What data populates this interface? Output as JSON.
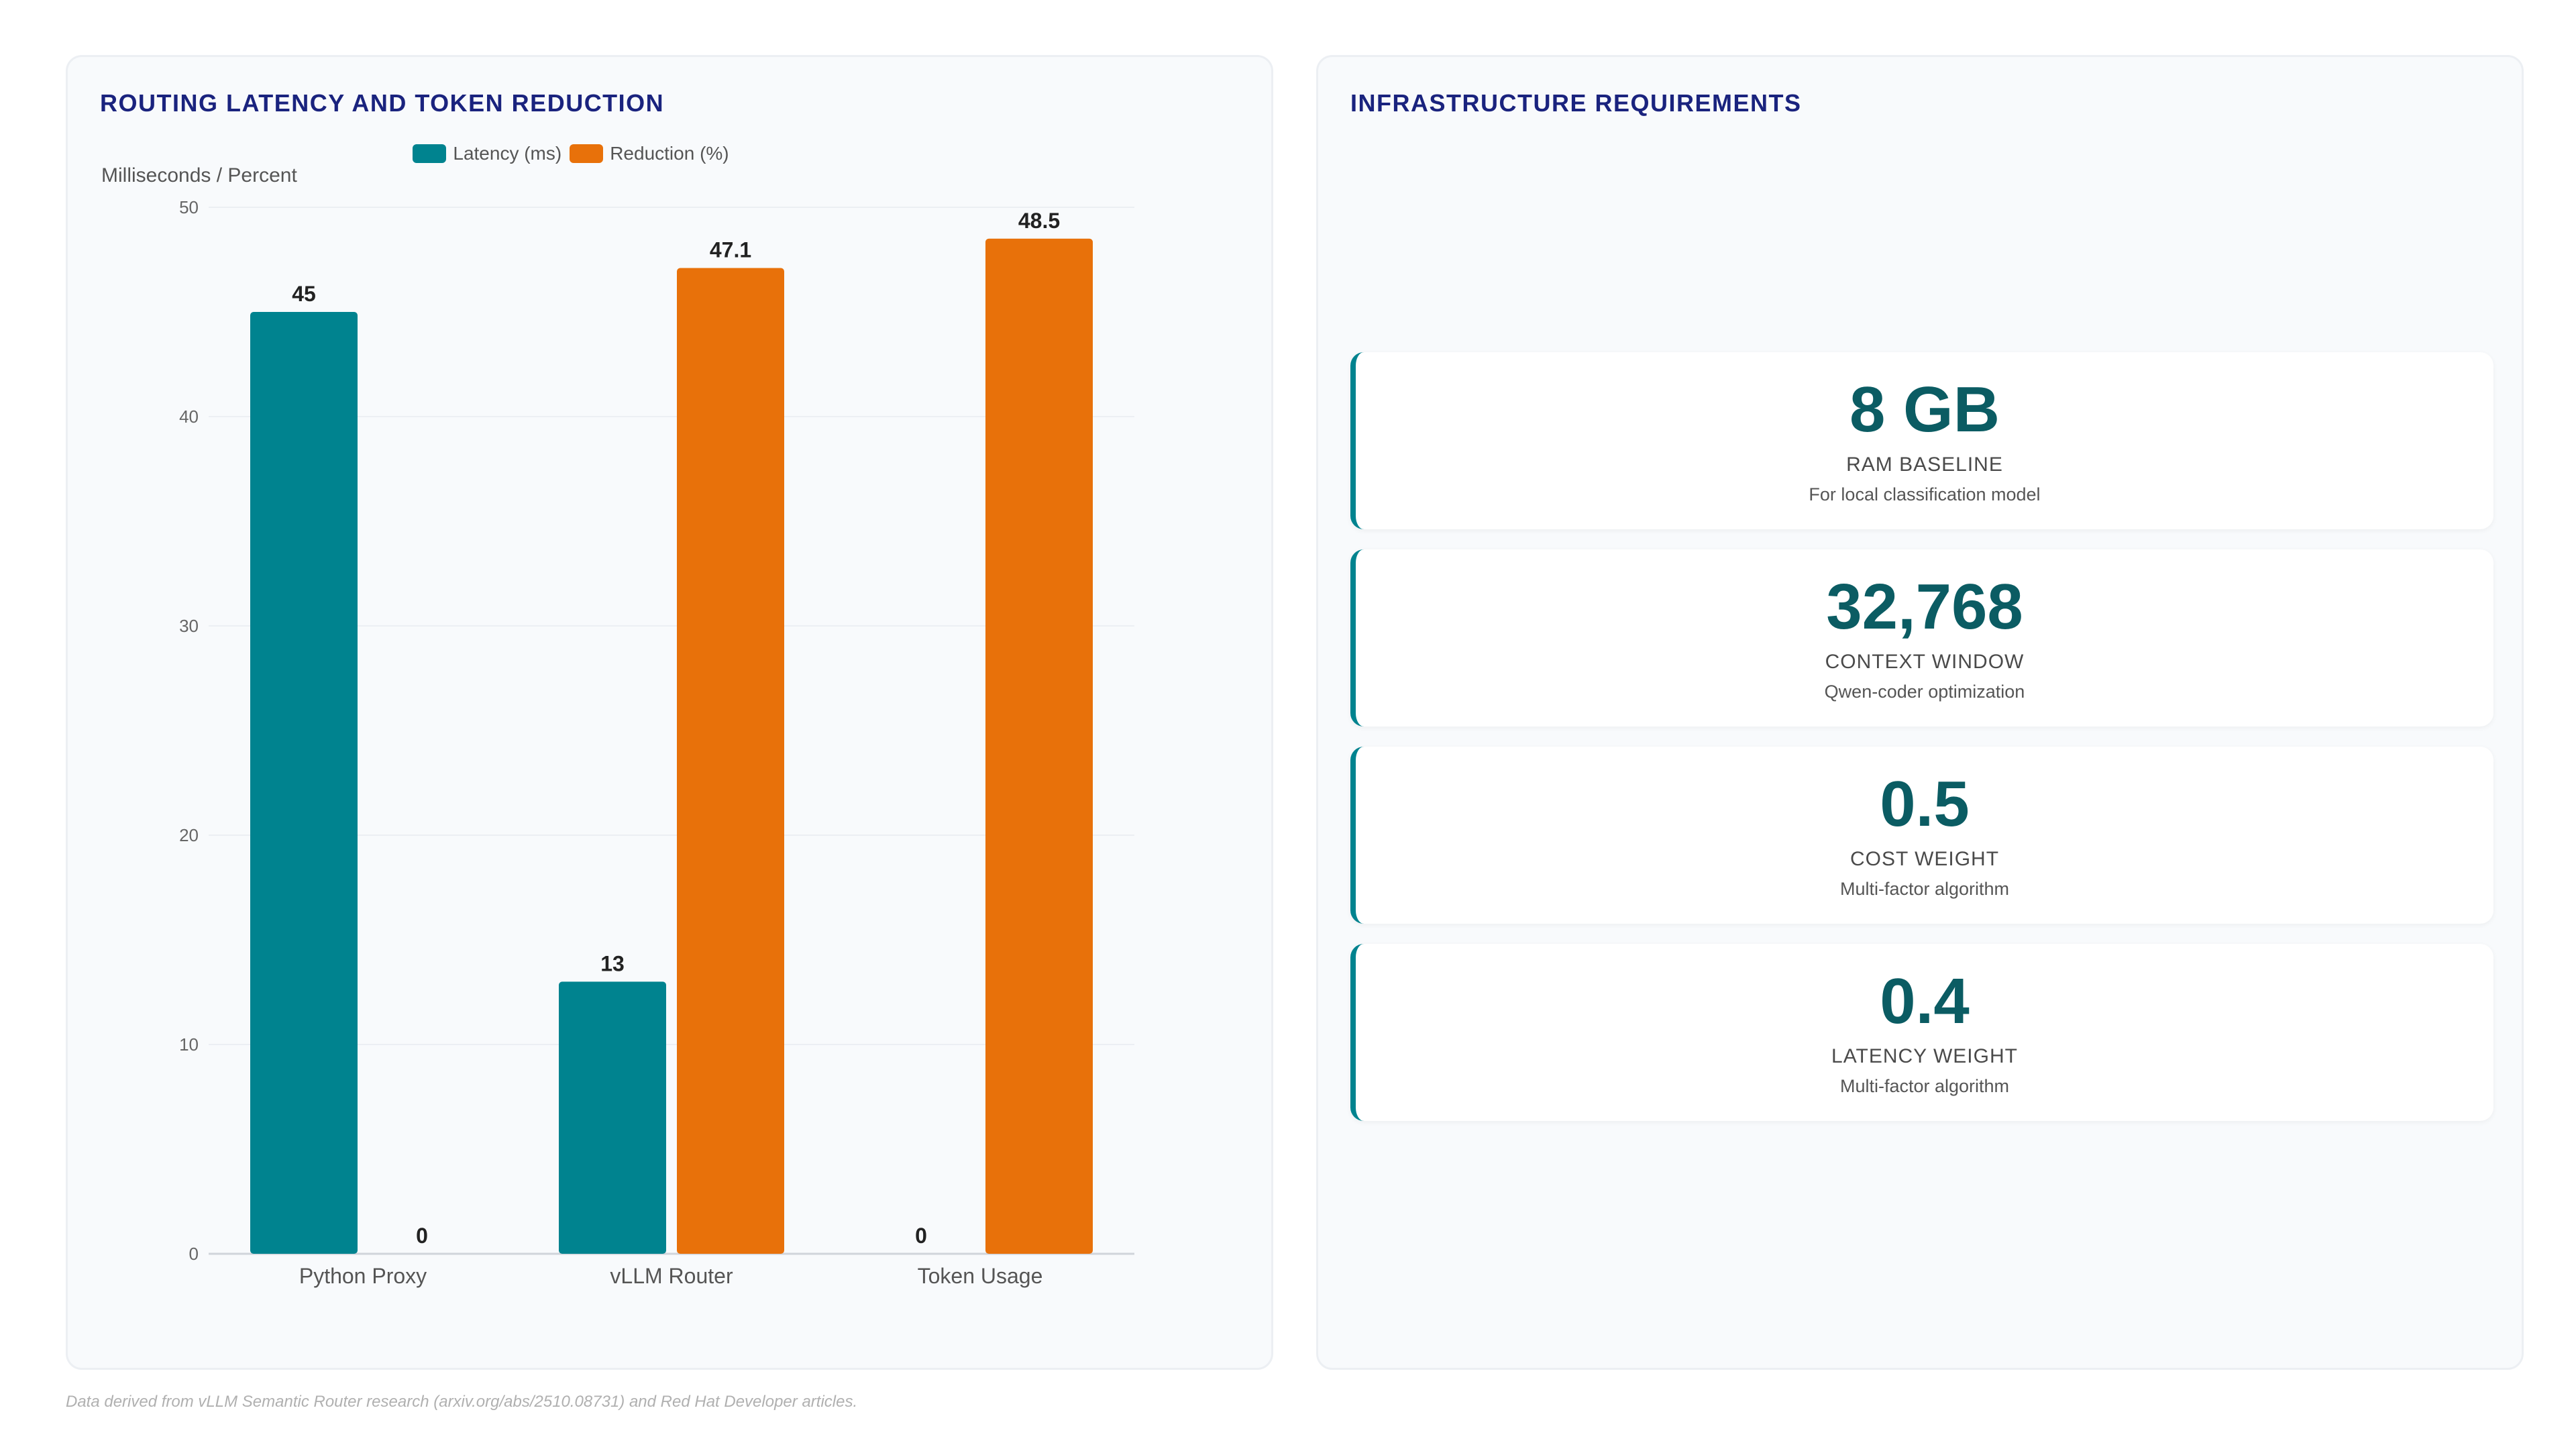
{
  "chart_panel": {
    "title": "ROUTING LATENCY AND TOKEN REDUCTION"
  },
  "chart_data": {
    "type": "bar",
    "title": "ROUTING LATENCY AND TOKEN REDUCTION",
    "ylabel": "Milliseconds / Percent",
    "xlabel": "",
    "categories": [
      "Python Proxy",
      "vLLM Router",
      "Token Usage"
    ],
    "series": [
      {
        "name": "Latency (ms)",
        "color": "#00838f",
        "values": [
          45,
          13,
          0
        ]
      },
      {
        "name": "Reduction (%)",
        "color": "#e8710a",
        "values": [
          0,
          47.1,
          48.5
        ]
      }
    ],
    "ylim": [
      0,
      50
    ],
    "yticks": [
      0,
      10,
      20,
      30,
      40,
      50
    ],
    "grid": true,
    "legend": "top-center"
  },
  "infra_panel": {
    "title": "INFRASTRUCTURE REQUIREMENTS",
    "metrics": [
      {
        "value": "8 GB",
        "label": "RAM BASELINE",
        "desc": "For local classification model"
      },
      {
        "value": "32,768",
        "label": "CONTEXT WINDOW",
        "desc": "Qwen-coder optimization"
      },
      {
        "value": "0.5",
        "label": "COST WEIGHT",
        "desc": "Multi-factor algorithm"
      },
      {
        "value": "0.4",
        "label": "LATENCY WEIGHT",
        "desc": "Multi-factor algorithm"
      }
    ]
  },
  "footnote": "Data derived from vLLM Semantic Router research (arxiv.org/abs/2510.08731) and Red Hat Developer articles."
}
